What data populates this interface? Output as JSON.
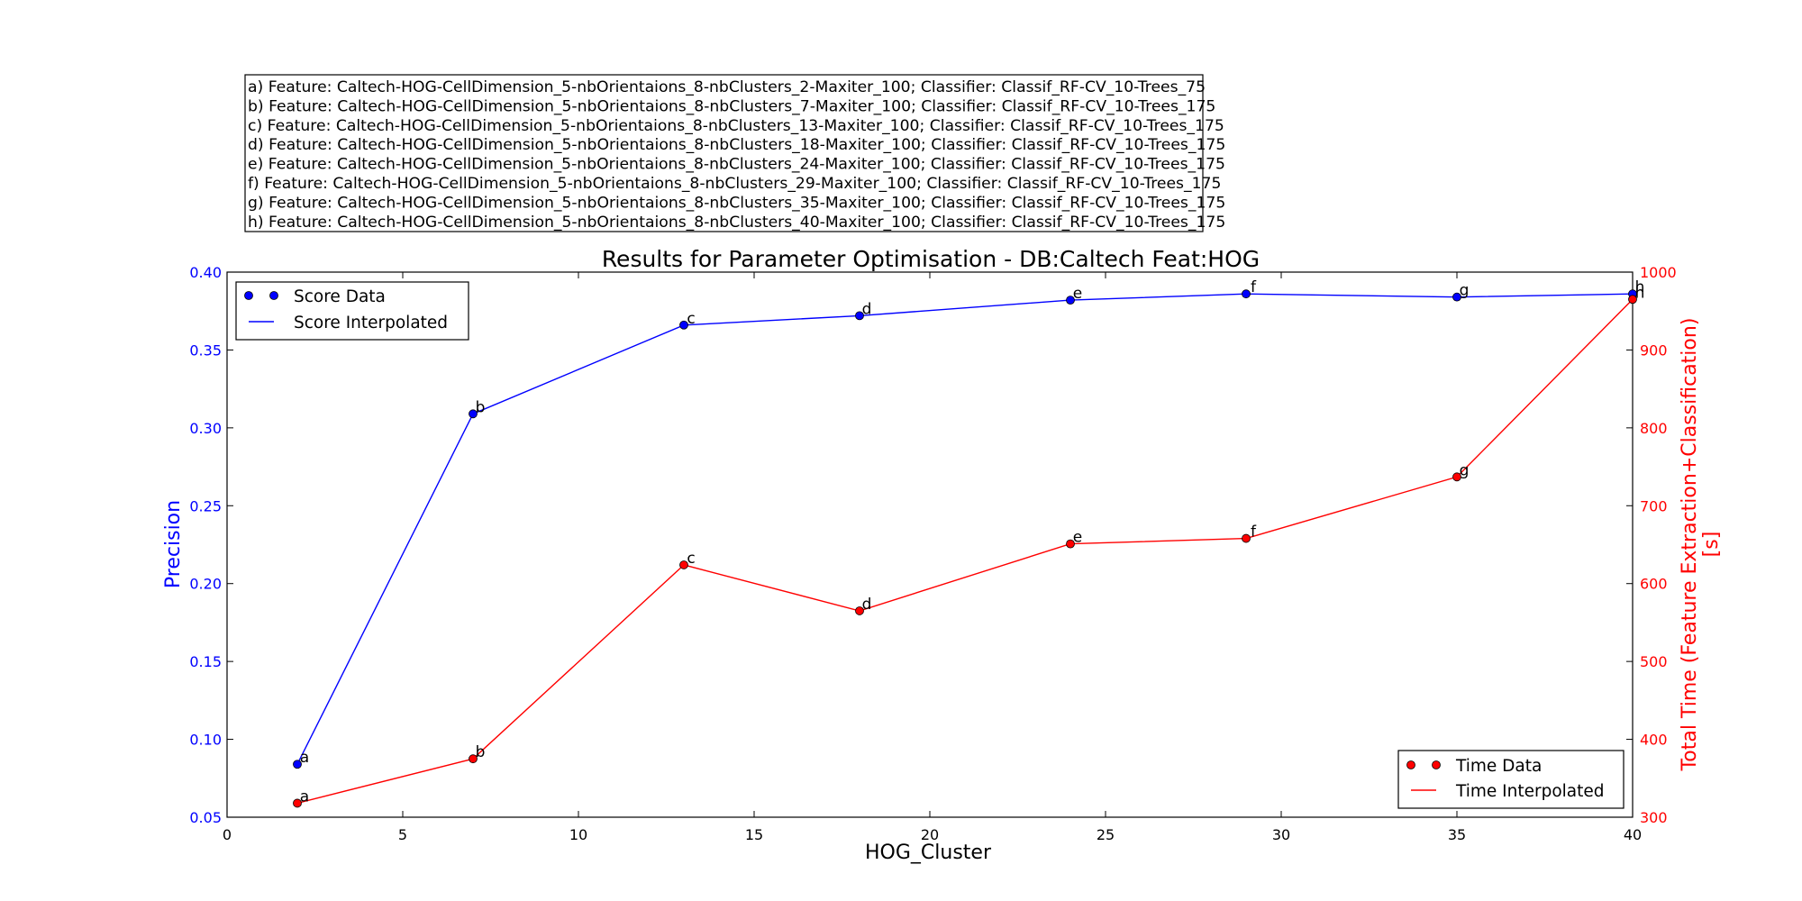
{
  "chart_data": {
    "type": "line",
    "title": "Results for Parameter Optimisation - DB:Caltech Feat:HOG",
    "xlabel": "HOG_Cluster",
    "ylabel_left": "Precision",
    "ylabel_right": [
      "Total Time (Feature Extraction+Classification)",
      "[s]"
    ],
    "xlim": [
      0,
      40
    ],
    "ylim_left": [
      0.05,
      0.4
    ],
    "ylim_right": [
      300,
      1000
    ],
    "xticks": [
      "0",
      "5",
      "10",
      "15",
      "20",
      "25",
      "30",
      "35",
      "40"
    ],
    "yticks_left": [
      "0.05",
      "0.10",
      "0.15",
      "0.20",
      "0.25",
      "0.30",
      "0.35",
      "0.40"
    ],
    "yticks_right": [
      "300",
      "400",
      "500",
      "600",
      "700",
      "800",
      "900",
      "1000"
    ],
    "grid": false,
    "x": [
      2,
      7,
      13,
      18,
      24,
      29,
      35,
      40
    ],
    "point_labels": [
      "a",
      "b",
      "c",
      "d",
      "e",
      "f",
      "g",
      "h"
    ],
    "series": [
      {
        "name": "Score",
        "axis": "left",
        "color": "#0000ff",
        "values": [
          0.084,
          0.309,
          0.366,
          0.372,
          0.382,
          0.386,
          0.384,
          0.386
        ]
      },
      {
        "name": "Time",
        "axis": "right",
        "color": "#ff0000",
        "values": [
          318,
          375,
          624,
          565,
          651,
          658,
          737,
          965
        ]
      }
    ],
    "legend_left": {
      "placement": "top-left",
      "entries": [
        "Score Data",
        "Score Interpolated"
      ]
    },
    "legend_right": {
      "placement": "bottom-right",
      "entries": [
        "Time Data",
        "Time Interpolated"
      ]
    },
    "annotation_lines": [
      "a) Feature: Caltech-HOG-CellDimension_5-nbOrientaions_8-nbClusters_2-Maxiter_100; Classifier: Classif_RF-CV_10-Trees_75",
      "b) Feature: Caltech-HOG-CellDimension_5-nbOrientaions_8-nbClusters_7-Maxiter_100; Classifier: Classif_RF-CV_10-Trees_175",
      "c) Feature: Caltech-HOG-CellDimension_5-nbOrientaions_8-nbClusters_13-Maxiter_100; Classifier: Classif_RF-CV_10-Trees_175",
      "d) Feature: Caltech-HOG-CellDimension_5-nbOrientaions_8-nbClusters_18-Maxiter_100; Classifier: Classif_RF-CV_10-Trees_175",
      "e) Feature: Caltech-HOG-CellDimension_5-nbOrientaions_8-nbClusters_24-Maxiter_100; Classifier: Classif_RF-CV_10-Trees_175",
      "f) Feature: Caltech-HOG-CellDimension_5-nbOrientaions_8-nbClusters_29-Maxiter_100; Classifier: Classif_RF-CV_10-Trees_175",
      "g) Feature: Caltech-HOG-CellDimension_5-nbOrientaions_8-nbClusters_35-Maxiter_100; Classifier: Classif_RF-CV_10-Trees_175",
      "h) Feature: Caltech-HOG-CellDimension_5-nbOrientaions_8-nbClusters_40-Maxiter_100; Classifier: Classif_RF-CV_10-Trees_175"
    ]
  }
}
